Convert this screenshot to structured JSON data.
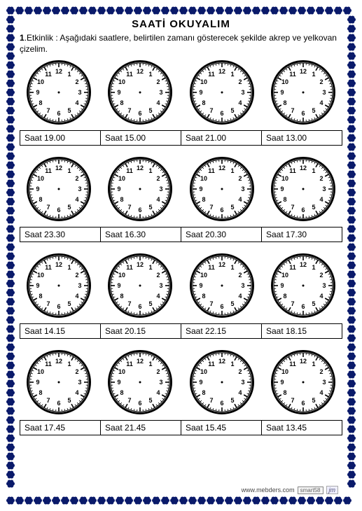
{
  "title": "SAATİ  OKUYALIM",
  "instruction_bold": "1",
  "instruction_text": ".Etkinlik : Aşağıdaki saatlere, belirtilen zamanı gösterecek şekilde akrep ve yelkovan çizelim.",
  "clock": {
    "diameter": 92,
    "face_color": "#ffffff",
    "rim_color": "#000000",
    "rim_width": 3,
    "tick_color": "#000000",
    "number_font_size": 9,
    "number_font_weight": "bold"
  },
  "rows": [
    {
      "labels": [
        "Saat  19.00",
        "Saat  15.00",
        "Saat  21.00",
        "Saat  13.00"
      ]
    },
    {
      "labels": [
        "Saat  23.30",
        "Saat  16.30",
        "Saat  20.30",
        "Saat  17.30"
      ]
    },
    {
      "labels": [
        "Saat  14.15",
        "Saat  20.15",
        "Saat  22.15",
        "Saat  18.15"
      ]
    },
    {
      "labels": [
        "Saat  17.45",
        "Saat  21.45",
        "Saat  15.45",
        "Saat  13.45"
      ]
    }
  ],
  "border": {
    "color": "#0a1a6a",
    "flower_radius": 6,
    "spacing": 13
  },
  "footer": {
    "site": "www.mebders.com",
    "badge": "smart58",
    "sig": "jm"
  }
}
